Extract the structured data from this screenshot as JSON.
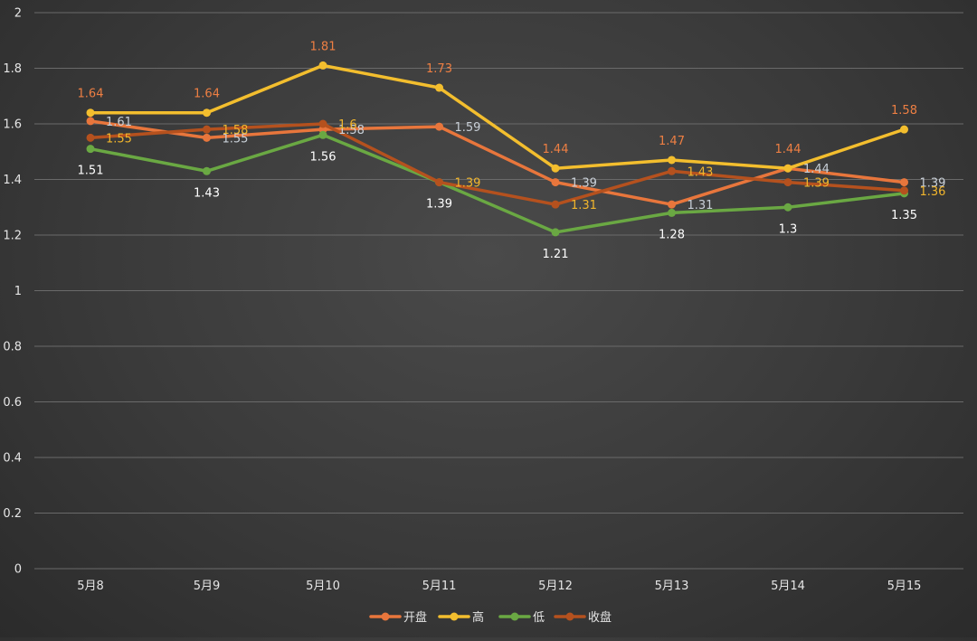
{
  "chart_data": {
    "type": "line",
    "categories": [
      "5月8",
      "5月9",
      "5月10",
      "5月11",
      "5月12",
      "5月13",
      "5月14",
      "5月15"
    ],
    "ylim": [
      0,
      2
    ],
    "yticks": [
      "0",
      "0.2",
      "0.4",
      "0.6",
      "0.8",
      "1",
      "1.2",
      "1.4",
      "1.6",
      "1.8",
      "2"
    ],
    "grid": true,
    "legend_position": "bottom",
    "series": [
      {
        "name": "开盘",
        "color": "#e8763c",
        "values": [
          1.61,
          1.55,
          1.58,
          1.59,
          1.39,
          1.31,
          1.44,
          1.39
        ],
        "label_color": "#c9d0d8",
        "label_position": "right"
      },
      {
        "name": "高",
        "color": "#f3be2e",
        "values": [
          1.64,
          1.64,
          1.81,
          1.73,
          1.44,
          1.47,
          1.44,
          1.58
        ],
        "label_color": "#ee7f43",
        "label_position": "above"
      },
      {
        "name": "低",
        "color": "#6aa843",
        "values": [
          1.51,
          1.43,
          1.56,
          1.39,
          1.21,
          1.28,
          1.3,
          1.35
        ],
        "label_color": "#ffffff",
        "label_position": "below"
      },
      {
        "name": "收盘",
        "color": "#b5511e",
        "values": [
          1.55,
          1.58,
          1.6,
          1.39,
          1.31,
          1.43,
          1.39,
          1.36
        ],
        "label_color": "#f2b62c",
        "label_position": "right"
      }
    ],
    "label_texts": [
      [
        "1.61",
        "1.55",
        "1.58",
        "1.59",
        "1.39",
        "1.31",
        "1.44",
        "1.39"
      ],
      [
        "1.64",
        "1.64",
        "1.81",
        "1.73",
        "1.44",
        "1.47",
        "1.44",
        "1.58"
      ],
      [
        "1.51",
        "1.43",
        "1.56",
        "1.39",
        "1.21",
        "1.28",
        "1.3",
        "1.35"
      ],
      [
        "1.55",
        "1.58",
        "1.6",
        "1.39",
        "1.31",
        "1.43",
        "1.39",
        "1.36"
      ]
    ]
  }
}
